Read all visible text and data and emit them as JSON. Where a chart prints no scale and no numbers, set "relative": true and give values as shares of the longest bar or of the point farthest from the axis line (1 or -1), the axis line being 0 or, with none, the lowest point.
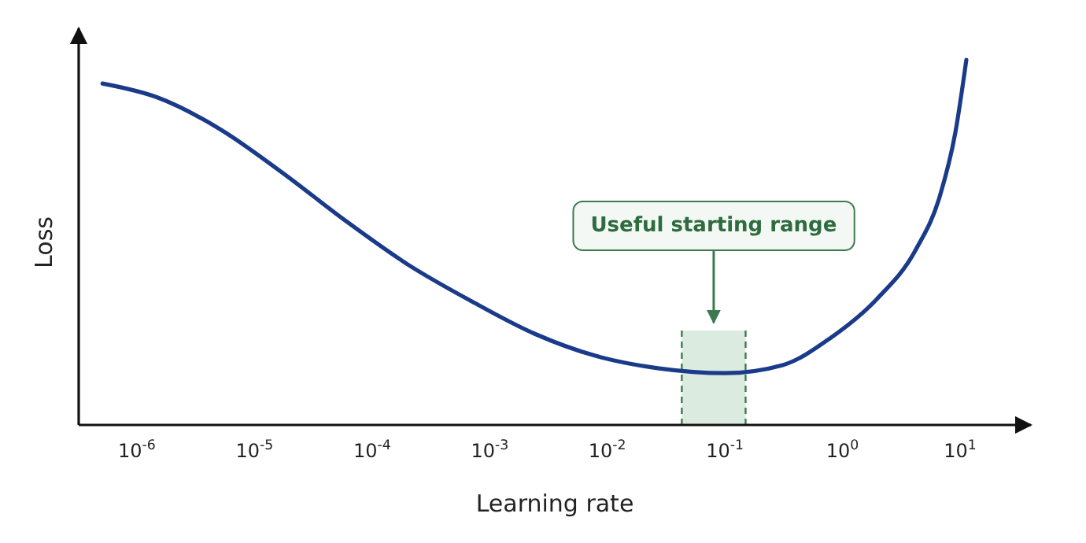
{
  "chart_data": {
    "type": "line",
    "xlabel": "Learning rate",
    "ylabel": "Loss",
    "log": "x",
    "relative": true,
    "grid": false,
    "marker": "none",
    "line_style": "solid",
    "xlim": [
      3.2e-07,
      40
    ],
    "xticks": [
      {
        "value": 1e-06,
        "label": "10$^{-6}$"
      },
      {
        "value": 1e-05,
        "label": "10$^{-5}$"
      },
      {
        "value": 0.0001,
        "label": "10$^{-4}$"
      },
      {
        "value": 0.001,
        "label": "10$^{-3}$"
      },
      {
        "value": 0.01,
        "label": "10$^{-2}$"
      },
      {
        "value": 0.1,
        "label": "10$^{-1}$"
      },
      {
        "value": 1,
        "label": "10$^{0}$"
      },
      {
        "value": 10,
        "label": "10$^{1}$"
      }
    ],
    "bands": [
      {
        "axis": "x",
        "from": 0.043,
        "to": 0.15,
        "label": "Useful starting range",
        "color": "#dcebdf"
      }
    ],
    "series": [
      {
        "color": "#1a3a8a",
        "x": [
          5.1e-07,
          1.49e-06,
          5.1e-06,
          1.74e-05,
          5.9e-05,
          0.0002,
          0.00069,
          0.0024,
          0.0078,
          0.0275,
          0.1,
          0.31,
          0.78,
          1.96,
          4.2,
          6.7,
          9.1,
          11.3
        ],
        "values": [
          0.935,
          0.897,
          0.81,
          0.69,
          0.56,
          0.44,
          0.34,
          0.25,
          0.19,
          0.155,
          0.142,
          0.164,
          0.237,
          0.345,
          0.48,
          0.625,
          0.8,
          1.0
        ]
      }
    ]
  }
}
